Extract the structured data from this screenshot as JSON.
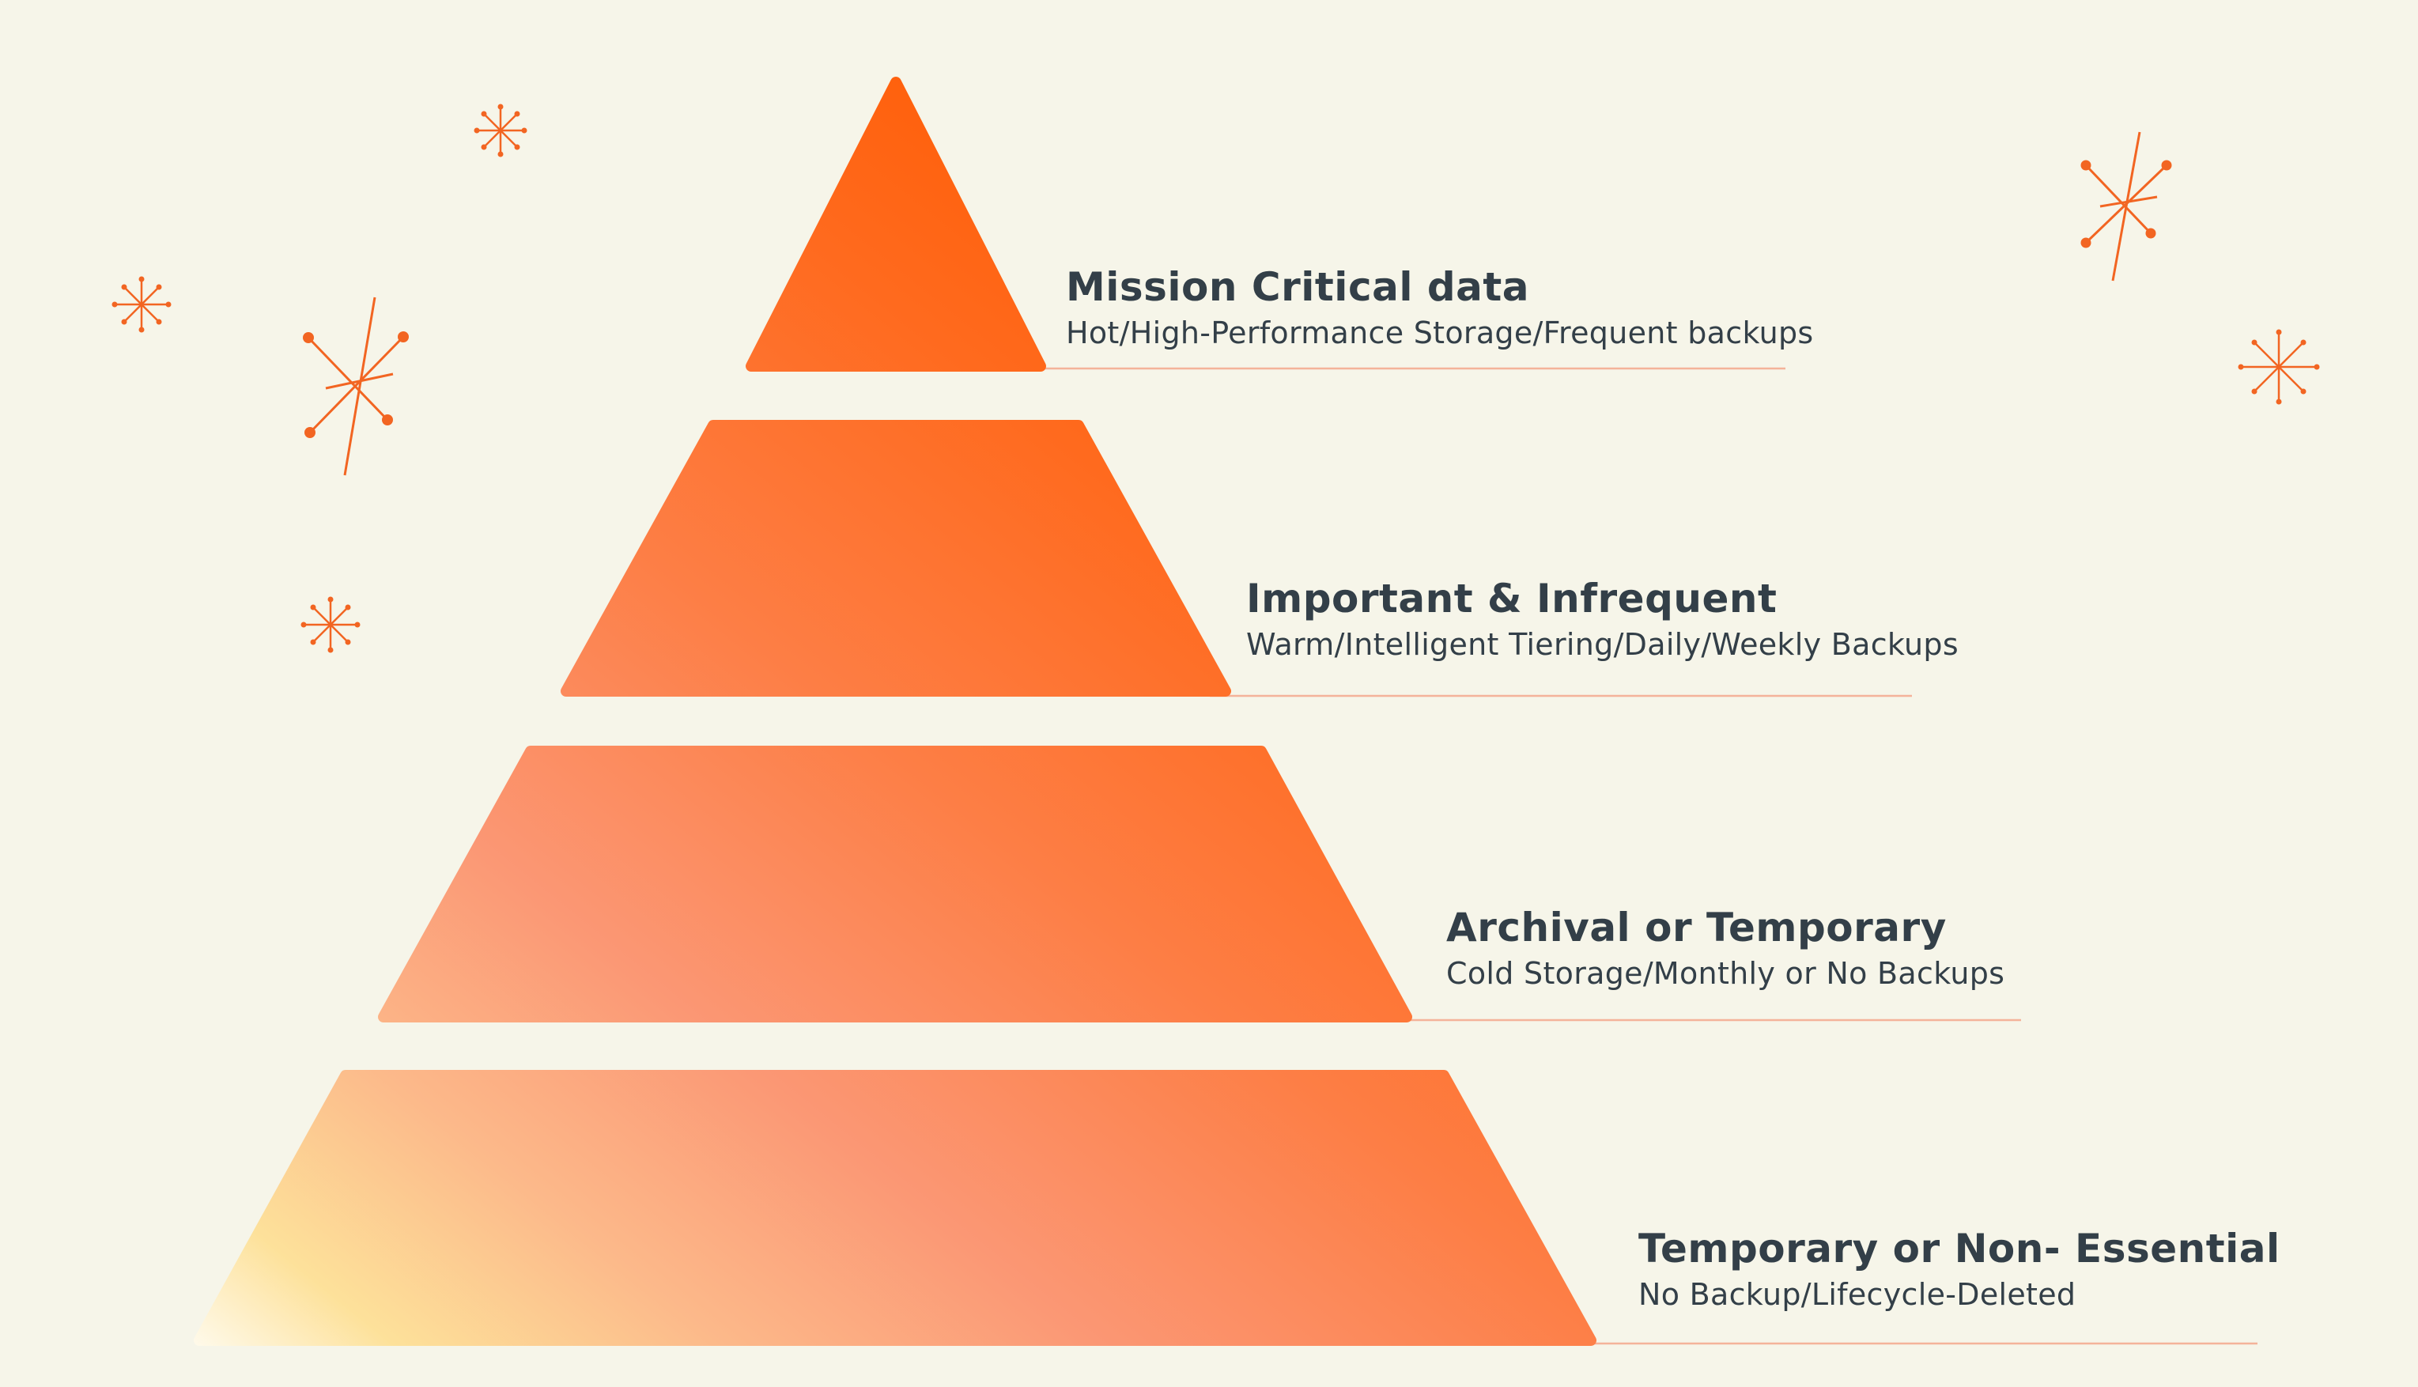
{
  "diagram": {
    "type": "pyramid",
    "colors": {
      "background": "#f6f5e9",
      "accent": "#ff5f00",
      "text": "#333f48",
      "divider": "#f4b39a"
    },
    "decorations": [
      "sparkle-icon",
      "sparkle-icon",
      "sparkle-icon",
      "sparkle-icon",
      "sparkle-icon",
      "sparkle-icon"
    ],
    "tiers": [
      {
        "title": "Mission Critical data",
        "description": "Hot/High-Performance Storage/Frequent backups"
      },
      {
        "title": "Important & Infrequent",
        "description": "Warm/Intelligent Tiering/Daily/Weekly Backups"
      },
      {
        "title": "Archival or Temporary",
        "description": "Cold Storage/Monthly or No Backups"
      },
      {
        "title": "Temporary or Non- Essential",
        "description": "No Backup/Lifecycle-Deleted"
      }
    ]
  }
}
